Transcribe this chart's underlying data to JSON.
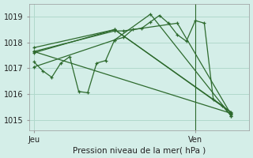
{
  "background_color": "#d4eee8",
  "grid_color": "#b0d8cc",
  "line_color": "#2d6a2d",
  "marker_color": "#2d6a2d",
  "ylabel_ticks": [
    1015,
    1016,
    1017,
    1018,
    1019
  ],
  "xlabel": "Pression niveau de la mer( hPa )",
  "xtick_labels": [
    "Jeu",
    "Ven"
  ],
  "xtick_positions": [
    0.0,
    18.0
  ],
  "ylim": [
    1014.6,
    1019.5
  ],
  "xlim": [
    -0.5,
    24.0
  ],
  "jeu_x": 0.0,
  "ven_x": 18.0,
  "vertical_line_x": 18.0,
  "series": [
    [
      0,
      1017.25,
      1,
      1016.9,
      2,
      1016.65,
      3,
      1017.2,
      4,
      1017.45,
      5,
      1016.1,
      6,
      1016.05,
      7,
      1017.2,
      8,
      1017.3,
      9,
      1018.1,
      10,
      1018.2,
      11,
      1018.5,
      12,
      1018.55,
      13,
      1018.8,
      14,
      1019.05,
      15,
      1018.75,
      16,
      1018.3,
      17,
      1018.05,
      18,
      1018.85,
      19,
      1018.75,
      20,
      1015.8,
      21,
      1015.55,
      22,
      1015.15
    ],
    [
      0,
      1017.65,
      9,
      1018.45,
      10,
      1018.45,
      16,
      1018.75,
      22,
      1015.2
    ],
    [
      0,
      1017.05,
      9,
      1018.1,
      13,
      1019.1,
      22,
      1015.15
    ],
    [
      0,
      1017.65,
      22,
      1015.25
    ],
    [
      0,
      1017.8,
      9,
      1018.5,
      22,
      1015.3
    ],
    [
      0,
      1017.6,
      9,
      1018.5,
      22,
      1015.28
    ]
  ],
  "figsize": [
    3.2,
    2.0
  ],
  "dpi": 100,
  "tick_fontsize": 7,
  "xlabel_fontsize": 7.5
}
